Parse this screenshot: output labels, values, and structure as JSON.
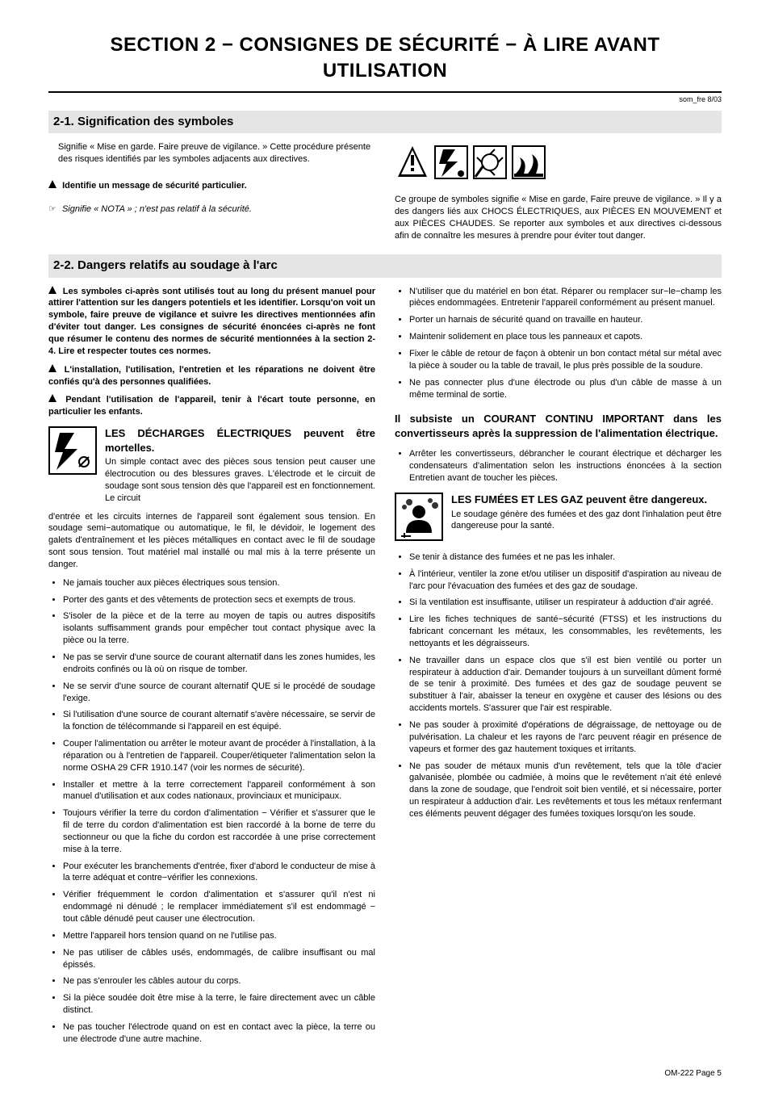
{
  "doc_rev": "som_fre 8/03",
  "section_title": "SECTION 2 − CONSIGNES DE SÉCURITÉ − À LIRE AVANT UTILISATION",
  "sub_2_1": "2-1.  Signification des symboles",
  "sub_2_2": "2-2.  Dangers relatifs au soudage à l'arc",
  "sig_warn_text": "Signifie « Mise en garde. Faire preuve de vigilance. » Cette procédure présente des risques identifiés par les symboles adjacents aux directives.",
  "identify_msg": "Identifie un message de sécurité particulier.",
  "nota_msg": "Signifie « NOTA » ; n'est pas relatif à la sécurité.",
  "group_symbols_text": "Ce groupe de symboles signifie « Mise en garde, Faire preuve de vigilance. » Il y a des dangers liés aux CHOCS ÉLECTRIQUES, aux PIÈCES EN MOUVEMENT et aux PIÈCES CHAUDES. Se reporter aux symboles et aux directives ci-dessous afin de connaître les mesures à prendre pour éviter tout danger.",
  "intro_bold_1": "Les symboles ci-après sont utilisés tout au long du présent manuel pour attirer l'attention sur les dangers potentiels et les identifier. Lorsqu'on voit un symbole, faire preuve de vigilance et suivre les directives mentionnées afin d'éviter tout danger. Les consignes de sécurité énoncées ci-après ne font que résumer le contenu des normes de sécurité mentionnées à la section 2-4. Lire et respecter toutes ces normes.",
  "intro_bold_2": "L'installation, l'utilisation, l'entretien et les réparations ne doivent être confiés qu'à des personnes qualifiées.",
  "intro_bold_3": "Pendant l'utilisation de l'appareil, tenir à l'écart toute personne, en particulier les enfants.",
  "electric_title": "LES DÉCHARGES ÉLECTRIQUES peuvent être mortelles.",
  "electric_intro": "Un simple contact avec des pièces sous tension peut causer une électrocution ou des blessures graves. L'électrode et le circuit de soudage sont sous tension dès que l'appareil est en fonctionnement. Le circuit d'entrée et les circuits internes de l'appareil sont également sous tension. En soudage semi−automatique ou automatique, le fil, le dévidoir, le logement des galets d'entraînement et les pièces métalliques en contact avec le fil de soudage sont sous tension. Tout matériel mal installé ou mal mis à la terre présente un danger.",
  "electric_bullets": [
    "Ne jamais toucher aux pièces électriques sous tension.",
    "Porter des gants et des vêtements de protection secs et exempts de trous.",
    "S'isoler de la pièce et de la terre au moyen de tapis ou autres dispositifs isolants suffisamment grands pour empêcher tout contact physique avec la pièce ou la terre.",
    "Ne pas se servir d'une source de courant alternatif dans les zones humides, les endroits confinés ou là où on risque de tomber.",
    "Ne se servir d'une source de courant alternatif QUE si le procédé de soudage l'exige.",
    "Si l'utilisation d'une source de courant alternatif s'avère nécessaire, se servir de la fonction de télécommande si l'appareil en est équipé.",
    "Couper l'alimentation ou arrêter le moteur avant de procéder à l'installation, à la réparation ou à l'entretien de l'appareil. Couper/étiqueter l'alimentation selon la norme OSHA 29 CFR 1910.147 (voir les normes de sécurité).",
    "Installer et mettre à la terre correctement l'appareil conformément à son manuel d'utilisation et aux codes nationaux, provinciaux et municipaux.",
    "Toujours vérifier la terre du cordon d'alimentation − Vérifier et s'assurer que le fil de terre du cordon d'alimentation est bien raccordé à la borne de terre du sectionneur ou que la fiche du cordon est raccordée à une prise correctement mise à la terre.",
    "Pour exécuter les branchements d'entrée, fixer d'abord le conducteur de mise à la terre adéquat et contre−vérifier les connexions.",
    "Vérifier fréquemment le cordon d'alimentation et s'assurer qu'il n'est ni endommagé ni dénudé ; le remplacer immédiatement s'il est endommagé − tout câble dénudé peut causer une électrocution.",
    "Mettre l'appareil hors tension quand on ne l'utilise pas.",
    "Ne pas utiliser de câbles usés, endommagés, de calibre insuffisant ou mal épissés.",
    "Ne pas s'enrouler les câbles autour du corps.",
    "Si la pièce soudée doit être mise à la terre, le faire directement avec un câble distinct.",
    "Ne pas toucher l'électrode quand on est en contact avec la pièce, la terre ou une électrode d'une autre machine."
  ],
  "right_bullets_1": [
    "N'utiliser que du matériel en bon état. Réparer ou remplacer sur−le−champ les pièces endommagées. Entretenir l'appareil conformément au présent manuel.",
    "Porter un harnais de sécurité quand on travaille en hauteur.",
    "Maintenir solidement en place tous les panneaux et capots.",
    "Fixer le câble de retour de façon à obtenir un bon contact métal sur métal avec la pièce à souder ou la table de travail, le plus près possible de la soudure.",
    "Ne pas connecter plus d'une électrode ou plus d'un câble de masse à un même terminal de sortie."
  ],
  "continuous_current_head": "Il subsiste un COURANT CONTINU IMPORTANT dans les convertisseurs après la suppression de l'alimentation électrique.",
  "continuous_current_bullet": "Arrêter les convertisseurs, débrancher le courant électrique et décharger les condensateurs d'alimentation selon les instructions énoncées à la section Entretien avant de toucher les pièces.",
  "fumes_title": "LES FUMÉES ET LES GAZ peuvent être dangereux.",
  "fumes_intro": "Le soudage génère des fumées et des gaz dont l'inhalation peut être dangereuse pour la santé.",
  "fumes_bullets": [
    "Se tenir à distance des fumées et ne pas les inhaler.",
    "À l'intérieur, ventiler la zone et/ou utiliser un dispositif d'aspiration au niveau de l'arc pour l'évacuation des fumées et des gaz de soudage.",
    "Si la ventilation est insuffisante, utiliser un respirateur à adduction d'air agréé.",
    "Lire les fiches techniques de santé−sécurité (FTSS) et les instructions du fabricant concernant les métaux, les consommables, les revêtements, les nettoyants et les dégraisseurs.",
    "Ne travailler dans un espace clos que s'il est bien ventilé ou porter un respirateur à adduction d'air. Demander toujours à un surveillant dûment formé de se tenir à proximité. Des fumées et des gaz de soudage peuvent se substituer à l'air, abaisser la teneur en oxygène et causer des lésions ou des accidents mortels. S'assurer que l'air est respirable.",
    "Ne pas souder à proximité d'opérations de dégraissage, de nettoyage ou de pulvérisation. La chaleur et les rayons de l'arc peuvent réagir en présence de vapeurs et former des gaz hautement toxiques et irritants.",
    "Ne pas souder de métaux munis d'un revêtement, tels que la tôle d'acier galvanisée, plombée ou cadmiée, à moins que le revêtement n'ait été enlevé dans la zone de soudage, que l'endroit soit bien ventilé, et si nécessaire, porter un respirateur à adduction d'air. Les revêtements et tous les métaux renfermant ces éléments peuvent dégager des fumées toxiques lorsqu'on les soude."
  ],
  "footer": "OM-222 Page 5",
  "colors": {
    "bg": "#ffffff",
    "text": "#000000",
    "heading_bg": "#e5e5e5",
    "rule": "#000000"
  }
}
